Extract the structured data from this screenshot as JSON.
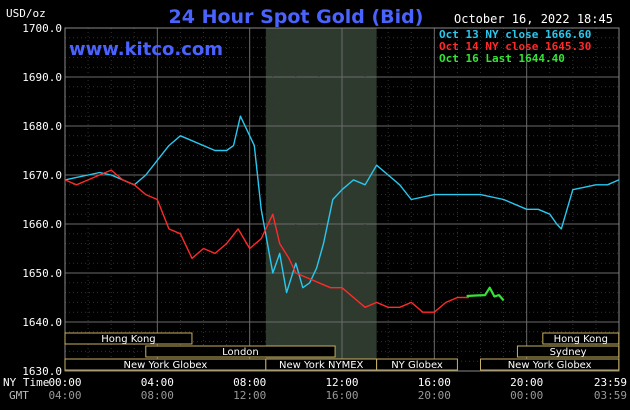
{
  "chart_data": {
    "type": "line",
    "title": "24 Hour Spot Gold (Bid)",
    "source": "www.kitco.com",
    "timestamp": "October 16, 2022 18:45",
    "y_unit": "USD/oz",
    "ylim": [
      1630,
      1700
    ],
    "y_ticks": [
      "1700.0",
      "1690.0",
      "1680.0",
      "1670.0",
      "1660.0",
      "1650.0",
      "1640.0",
      "1630.0"
    ],
    "x_rows": [
      {
        "label": "NY Time",
        "ticks": [
          "00:00",
          "04:00",
          "08:00",
          "12:00",
          "16:00",
          "20:00",
          "23:59"
        ]
      },
      {
        "label": "GMT",
        "ticks": [
          "04:00",
          "08:00",
          "12:00",
          "16:00",
          "20:00",
          "00:00",
          "03:59"
        ]
      }
    ],
    "legend": [
      {
        "label": "Oct 13 NY close 1666.60",
        "color": "#29c8ee"
      },
      {
        "label": "Oct 14 NY close 1645.30",
        "color": "#ff2a2a"
      },
      {
        "label": "Oct 16 Last 1644.40",
        "color": "#35e335"
      }
    ],
    "series": [
      {
        "label": "Oct 13",
        "color": "#29c8ee",
        "x": [
          0,
          0.5,
          1,
          1.5,
          2,
          2.5,
          3,
          3.5,
          4,
          4.5,
          5,
          5.5,
          6,
          6.5,
          7,
          7.3,
          7.6,
          7.9,
          8.2,
          8.5,
          9,
          9.3,
          9.6,
          10,
          10.3,
          10.6,
          10.9,
          11.2,
          11.6,
          12,
          12.5,
          13,
          13.5,
          14,
          14.5,
          15,
          16,
          17,
          18,
          19,
          20,
          20.5,
          21,
          21.3,
          21.5,
          22,
          23,
          23.5,
          23.99
        ],
        "y": [
          1669,
          1669.5,
          1670,
          1670.5,
          1670,
          1669,
          1668,
          1670,
          1673,
          1676,
          1678,
          1677,
          1676,
          1675,
          1675,
          1676,
          1682,
          1679,
          1676,
          1663,
          1650,
          1654,
          1646,
          1652,
          1647,
          1648,
          1651,
          1656,
          1665,
          1667,
          1669,
          1668,
          1672,
          1670,
          1668,
          1665,
          1666,
          1666,
          1666,
          1665,
          1663,
          1663,
          1662,
          1660,
          1659,
          1667,
          1668,
          1668,
          1669
        ]
      },
      {
        "label": "Oct 14",
        "color": "#ff2a2a",
        "x": [
          0,
          0.5,
          1,
          1.5,
          2,
          2.5,
          3,
          3.5,
          4,
          4.5,
          5,
          5.5,
          6,
          6.5,
          7,
          7.5,
          8,
          8.5,
          9,
          9.3,
          9.7,
          10,
          10.5,
          11,
          11.5,
          12,
          12.5,
          13,
          13.5,
          14,
          14.5,
          15,
          15.5,
          16,
          16.5,
          17,
          17.5
        ],
        "y": [
          1669,
          1668,
          1669,
          1670,
          1671,
          1669,
          1668,
          1666,
          1665,
          1659,
          1658,
          1653,
          1655,
          1654,
          1656,
          1659,
          1655,
          1657,
          1662,
          1656,
          1653,
          1650,
          1649,
          1648,
          1647,
          1647,
          1645,
          1643,
          1644,
          1643,
          1643,
          1644,
          1642,
          1642,
          1644,
          1645,
          1645
        ]
      },
      {
        "label": "Oct 16",
        "color": "#35e335",
        "x": [
          17.4,
          17.8,
          18.2,
          18.4,
          18.6,
          18.8,
          19.0
        ],
        "y": [
          1645.3,
          1645.4,
          1645.5,
          1647,
          1645.2,
          1645.5,
          1644.4
        ]
      }
    ]
  },
  "sessions": [
    {
      "label": "Hong Kong",
      "row": 0,
      "start": 0,
      "end": 5.5
    },
    {
      "label": "London",
      "row": 1,
      "start": 3.5,
      "end": 11.7
    },
    {
      "label": "New York Globex",
      "row": 2,
      "start": 0,
      "end": 8.7
    },
    {
      "label": "New York NYMEX",
      "row": 2,
      "start": 8.7,
      "end": 13.5
    },
    {
      "label": "NY Globex",
      "row": 2,
      "start": 13.5,
      "end": 17.0
    },
    {
      "label": "Hong Kong",
      "row": 0,
      "start": 20.7,
      "end": 23.99
    },
    {
      "label": "Sydney",
      "row": 1,
      "start": 19.6,
      "end": 23.99
    },
    {
      "label": "New York Globex",
      "row": 2,
      "start": 18.0,
      "end": 23.99
    }
  ]
}
